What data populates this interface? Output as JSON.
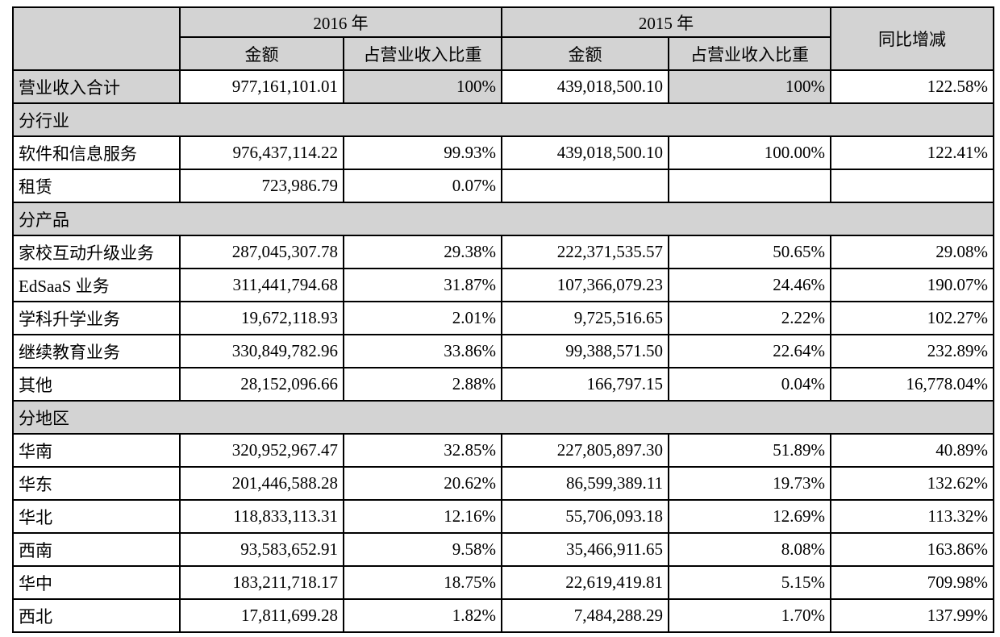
{
  "document": {
    "kind": "revenue-breakdown-financial-table"
  },
  "colors": {
    "header_bg": "#d3d3d3",
    "section_bg": "#d3d3d3",
    "border": "#000000",
    "text": "#000000",
    "page_bg": "#ffffff"
  },
  "table": {
    "header": {
      "item": "",
      "year_2016": "2016 年",
      "year_2015": "2015 年",
      "yoy": "同比增减",
      "amount": "金额",
      "share": "占营业收入比重"
    },
    "rows": [
      {
        "type": "data",
        "shaded": true,
        "label": "营业收入合计",
        "a2016": "977,161,101.01",
        "s2016": "100%",
        "a2015": "439,018,500.10",
        "s2015": "100%",
        "yoy": "122.58%"
      },
      {
        "type": "section",
        "label": "分行业"
      },
      {
        "type": "data",
        "label": "软件和信息服务",
        "a2016": "976,437,114.22",
        "s2016": "99.93%",
        "a2015": "439,018,500.10",
        "s2015": "100.00%",
        "yoy": "122.41%"
      },
      {
        "type": "data",
        "label": "租赁",
        "a2016": "723,986.79",
        "s2016": "0.07%",
        "a2015": "",
        "s2015": "",
        "yoy": ""
      },
      {
        "type": "section",
        "label": "分产品"
      },
      {
        "type": "data",
        "label": "家校互动升级业务",
        "a2016": "287,045,307.78",
        "s2016": "29.38%",
        "a2015": "222,371,535.57",
        "s2015": "50.65%",
        "yoy": "29.08%"
      },
      {
        "type": "data",
        "label": "EdSaaS 业务",
        "a2016": "311,441,794.68",
        "s2016": "31.87%",
        "a2015": "107,366,079.23",
        "s2015": "24.46%",
        "yoy": "190.07%"
      },
      {
        "type": "data",
        "label": "学科升学业务",
        "a2016": "19,672,118.93",
        "s2016": "2.01%",
        "a2015": "9,725,516.65",
        "s2015": "2.22%",
        "yoy": "102.27%"
      },
      {
        "type": "data",
        "label": "继续教育业务",
        "a2016": "330,849,782.96",
        "s2016": "33.86%",
        "a2015": "99,388,571.50",
        "s2015": "22.64%",
        "yoy": "232.89%"
      },
      {
        "type": "data",
        "label": "其他",
        "a2016": "28,152,096.66",
        "s2016": "2.88%",
        "a2015": "166,797.15",
        "s2015": "0.04%",
        "yoy": "16,778.04%"
      },
      {
        "type": "section",
        "label": "分地区"
      },
      {
        "type": "data",
        "label": "华南",
        "a2016": "320,952,967.47",
        "s2016": "32.85%",
        "a2015": "227,805,897.30",
        "s2015": "51.89%",
        "yoy": "40.89%"
      },
      {
        "type": "data",
        "label": "华东",
        "a2016": "201,446,588.28",
        "s2016": "20.62%",
        "a2015": "86,599,389.11",
        "s2015": "19.73%",
        "yoy": "132.62%"
      },
      {
        "type": "data",
        "label": "华北",
        "a2016": "118,833,113.31",
        "s2016": "12.16%",
        "a2015": "55,706,093.18",
        "s2015": "12.69%",
        "yoy": "113.32%"
      },
      {
        "type": "data",
        "label": "西南",
        "a2016": "93,583,652.91",
        "s2016": "9.58%",
        "a2015": "35,466,911.65",
        "s2015": "8.08%",
        "yoy": "163.86%"
      },
      {
        "type": "data",
        "label": "华中",
        "a2016": "183,211,718.17",
        "s2016": "18.75%",
        "a2015": "22,619,419.81",
        "s2015": "5.15%",
        "yoy": "709.98%"
      },
      {
        "type": "data",
        "label": "西北",
        "a2016": "17,811,699.28",
        "s2016": "1.82%",
        "a2015": "7,484,288.29",
        "s2015": "1.70%",
        "yoy": "137.99%"
      }
    ]
  }
}
